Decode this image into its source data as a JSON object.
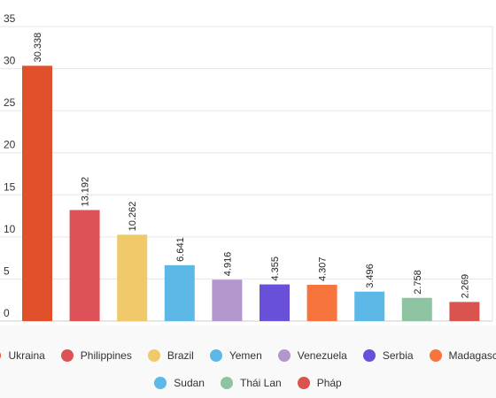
{
  "chart_data": {
    "type": "bar",
    "categories": [
      "Ukraina",
      "Philippines",
      "Brazil",
      "Yemen",
      "Venezuela",
      "Serbia",
      "Madagascar",
      "Sudan",
      "Thái Lan",
      "Pháp"
    ],
    "values": [
      30.338,
      13.192,
      10.262,
      6.641,
      4.916,
      4.355,
      4.307,
      3.496,
      2.758,
      2.269
    ],
    "value_labels": [
      "30.338",
      "13.192",
      "10.262",
      "6.641",
      "4.916",
      "4.355",
      "4.307",
      "3.496",
      "2.758",
      "2.269"
    ],
    "colors": [
      "#e0502a",
      "#dc5257",
      "#f0c96a",
      "#5cb8e6",
      "#b396cc",
      "#6a4fd8",
      "#f7743c",
      "#5cb8e6",
      "#8fc4a2",
      "#d9534f"
    ],
    "ylim": [
      0,
      35
    ],
    "yticks": [
      "0",
      "5",
      "10",
      "15",
      "20",
      "25",
      "30",
      "35"
    ],
    "grid": true,
    "legend_position": "bottom",
    "title": "",
    "xlabel": "",
    "ylabel": ""
  }
}
